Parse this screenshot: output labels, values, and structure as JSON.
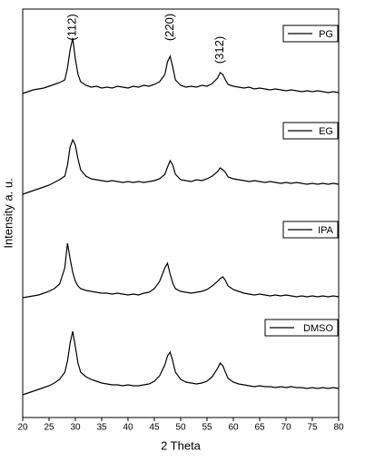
{
  "chart_data": {
    "type": "line",
    "xlabel": "2 Theta",
    "ylabel": "Intensity a. u.",
    "x": [
      20,
      21,
      22,
      23,
      24,
      25,
      26,
      27,
      28,
      28.5,
      29,
      29.5,
      30,
      30.5,
      31,
      32,
      33,
      34,
      35,
      36,
      37,
      38,
      39,
      40,
      41,
      42,
      43,
      44,
      45,
      46,
      47,
      47.5,
      48,
      48.5,
      49,
      50,
      51,
      52,
      53,
      54,
      55,
      56,
      57,
      57.5,
      58,
      58.5,
      59,
      60,
      61,
      62,
      63,
      64,
      65,
      66,
      67,
      68,
      69,
      70,
      71,
      72,
      73,
      74,
      75,
      76,
      77,
      78,
      79,
      80
    ],
    "series": [
      {
        "name": "PG",
        "color": "#000000",
        "values": [
          357,
          359,
          361,
          362,
          363,
          365,
          367,
          369,
          372,
          385,
          405,
          418,
          395,
          378,
          370,
          366,
          364,
          365,
          363,
          364,
          363,
          365,
          364,
          363,
          365,
          364,
          366,
          365,
          367,
          370,
          378,
          392,
          398,
          386,
          372,
          366,
          364,
          365,
          364,
          366,
          365,
          368,
          374,
          380,
          378,
          372,
          367,
          365,
          364,
          363,
          364,
          362,
          363,
          362,
          361,
          362,
          361,
          360,
          361,
          360,
          359,
          360,
          359,
          360,
          359,
          358,
          359,
          358
        ]
      },
      {
        "name": "EG",
        "color": "#000000",
        "values": [
          246,
          248,
          250,
          252,
          254,
          256,
          259,
          262,
          266,
          278,
          298,
          306,
          300,
          285,
          273,
          266,
          263,
          262,
          261,
          260,
          261,
          260,
          259,
          260,
          259,
          260,
          259,
          260,
          261,
          263,
          268,
          276,
          283,
          278,
          268,
          262,
          261,
          260,
          262,
          261,
          263,
          266,
          271,
          275,
          273,
          270,
          265,
          263,
          262,
          261,
          260,
          261,
          260,
          259,
          260,
          259,
          258,
          259,
          258,
          259,
          258,
          257,
          258,
          257,
          258,
          257,
          258,
          257
        ]
      },
      {
        "name": "IPA",
        "color": "#000000",
        "values": [
          132,
          133,
          134,
          135,
          137,
          139,
          142,
          147,
          165,
          192,
          175,
          160,
          150,
          145,
          142,
          140,
          139,
          138,
          137,
          137,
          136,
          137,
          136,
          135,
          136,
          135,
          137,
          138,
          142,
          150,
          165,
          170,
          158,
          148,
          142,
          139,
          138,
          137,
          138,
          139,
          141,
          145,
          150,
          153,
          155,
          151,
          145,
          141,
          139,
          137,
          136,
          135,
          136,
          135,
          134,
          135,
          134,
          135,
          134,
          133,
          134,
          133,
          134,
          133,
          134,
          133,
          134,
          133
        ]
      },
      {
        "name": "DMSO",
        "color": "#000000",
        "values": [
          25,
          27,
          29,
          31,
          33,
          35,
          38,
          42,
          50,
          62,
          82,
          95,
          78,
          60,
          50,
          45,
          42,
          40,
          38,
          37,
          36,
          36,
          35,
          36,
          35,
          35,
          36,
          37,
          40,
          46,
          58,
          68,
          72,
          62,
          50,
          42,
          39,
          38,
          37,
          38,
          40,
          45,
          54,
          60,
          57,
          50,
          43,
          39,
          37,
          36,
          35,
          34,
          35,
          34,
          34,
          33,
          34,
          33,
          34,
          33,
          33,
          32,
          33,
          32,
          33,
          32,
          33,
          32
        ]
      }
    ],
    "annotations": [
      {
        "text": "(112)",
        "x": 29.5
      },
      {
        "text": "(220)",
        "x": 48
      },
      {
        "text": "(312)",
        "x": 57.5
      }
    ],
    "xlim": [
      20,
      80
    ],
    "xticks": [
      20,
      25,
      30,
      35,
      40,
      45,
      50,
      55,
      60,
      65,
      70,
      75,
      80
    ],
    "ylim": [
      0,
      450
    ]
  }
}
